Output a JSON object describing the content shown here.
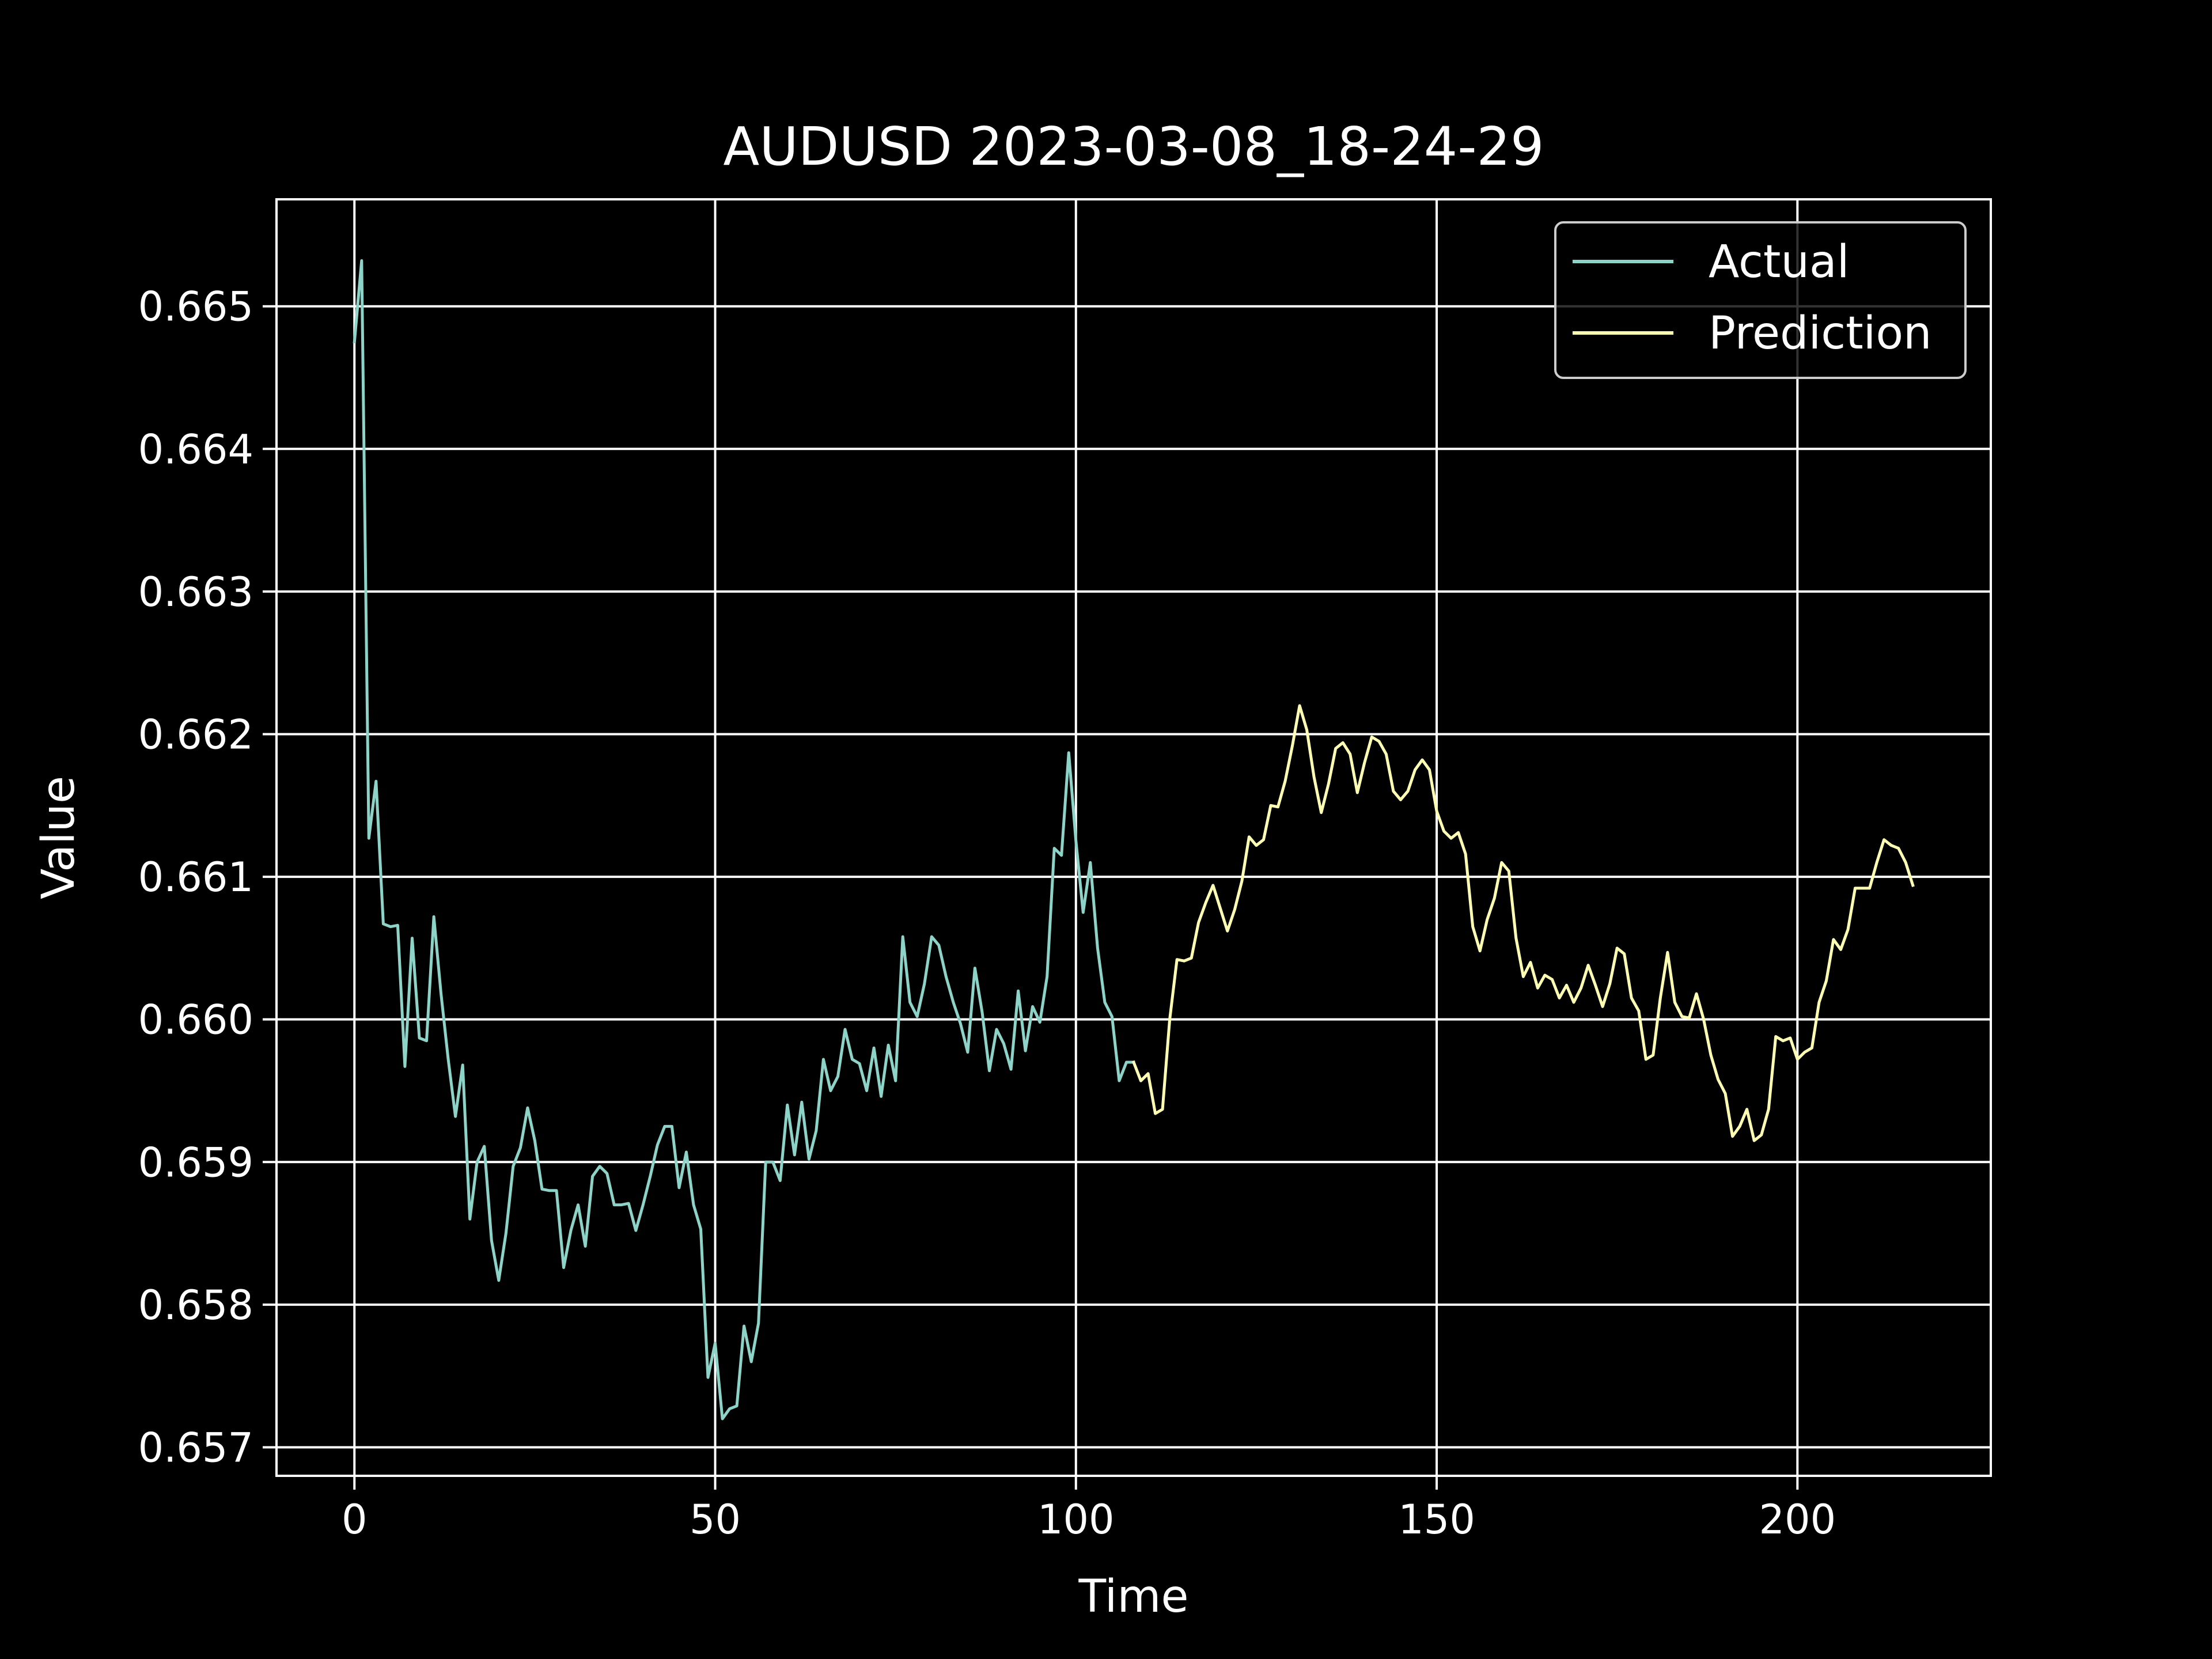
{
  "chart_data": {
    "type": "line",
    "title": "AUDUSD 2023-03-08_18-24-29",
    "xlabel": "Time",
    "ylabel": "Value",
    "xlim": [
      -10.8,
      226.8
    ],
    "ylim": [
      0.6568,
      0.66575
    ],
    "xticks": [
      0,
      50,
      100,
      150,
      200
    ],
    "xtick_labels": [
      "0",
      "50",
      "100",
      "150",
      "200"
    ],
    "yticks": [
      0.657,
      0.658,
      0.659,
      0.66,
      0.661,
      0.662,
      0.663,
      0.664,
      0.665
    ],
    "ytick_labels": [
      "0.657",
      "0.658",
      "0.659",
      "0.660",
      "0.661",
      "0.662",
      "0.663",
      "0.664",
      "0.665"
    ],
    "grid": true,
    "legend_position": "upper-right",
    "background": "#000000",
    "foreground": "#ffffff",
    "series": [
      {
        "name": "Actual",
        "color": "#8dd3c7",
        "x_start": 0,
        "values": [
          0.66475,
          0.66532,
          0.66127,
          0.66167,
          0.66067,
          0.66065,
          0.66066,
          0.65967,
          0.66057,
          0.65987,
          0.65985,
          0.66072,
          0.66018,
          0.65972,
          0.65932,
          0.65968,
          0.6586,
          0.659,
          0.65911,
          0.65845,
          0.65817,
          0.6585,
          0.65897,
          0.6591,
          0.65938,
          0.65915,
          0.65881,
          0.6588,
          0.6588,
          0.65826,
          0.65852,
          0.6587,
          0.65841,
          0.6589,
          0.65897,
          0.65892,
          0.6587,
          0.6587,
          0.65871,
          0.65852,
          0.6587,
          0.6589,
          0.65912,
          0.65925,
          0.65925,
          0.65882,
          0.65907,
          0.6587,
          0.65853,
          0.65749,
          0.65773,
          0.6572,
          0.65727,
          0.65729,
          0.65785,
          0.6576,
          0.65787,
          0.659,
          0.659,
          0.65887,
          0.6594,
          0.65905,
          0.65942,
          0.65902,
          0.65922,
          0.65972,
          0.6595,
          0.6596,
          0.65993,
          0.65972,
          0.65969,
          0.6595,
          0.6598,
          0.65946,
          0.65982,
          0.65957,
          0.66058,
          0.66012,
          0.66002,
          0.66025,
          0.66058,
          0.66052,
          0.6603,
          0.66012,
          0.65997,
          0.65977,
          0.66036,
          0.66005,
          0.65964,
          0.65993,
          0.65983,
          0.65965,
          0.6602,
          0.65978,
          0.66009,
          0.65998,
          0.6603,
          0.6612,
          0.66115,
          0.66187,
          0.66125,
          0.66075,
          0.6611,
          0.6605,
          0.66012,
          0.66002,
          0.65957,
          0.6597,
          0.6597
        ]
      },
      {
        "name": "Prediction",
        "color": "#ffffb3",
        "x_start": 108,
        "values": [
          0.6597,
          0.65957,
          0.65962,
          0.65934,
          0.65937,
          0.66,
          0.66042,
          0.66041,
          0.66043,
          0.66068,
          0.66082,
          0.66094,
          0.66078,
          0.66062,
          0.66077,
          0.66097,
          0.66128,
          0.66122,
          0.66126,
          0.6615,
          0.66149,
          0.66167,
          0.66192,
          0.6622,
          0.66203,
          0.6617,
          0.66145,
          0.66165,
          0.6619,
          0.66194,
          0.66186,
          0.66159,
          0.6618,
          0.66198,
          0.66195,
          0.66186,
          0.6616,
          0.66154,
          0.6616,
          0.66175,
          0.66182,
          0.66175,
          0.66146,
          0.66132,
          0.66127,
          0.66131,
          0.66116,
          0.66065,
          0.66048,
          0.6607,
          0.66085,
          0.6611,
          0.66104,
          0.66057,
          0.6603,
          0.6604,
          0.66022,
          0.66031,
          0.66028,
          0.66015,
          0.66024,
          0.66012,
          0.66022,
          0.66038,
          0.66024,
          0.66009,
          0.66025,
          0.6605,
          0.66046,
          0.66015,
          0.66006,
          0.65972,
          0.65975,
          0.66015,
          0.66047,
          0.66012,
          0.66002,
          0.66001,
          0.66018,
          0.66,
          0.65975,
          0.65958,
          0.65948,
          0.65918,
          0.65925,
          0.65937,
          0.65915,
          0.65919,
          0.65937,
          0.65988,
          0.65985,
          0.65987,
          0.65972,
          0.65977,
          0.6598,
          0.66012,
          0.66027,
          0.66056,
          0.66049,
          0.66063,
          0.66092,
          0.66092,
          0.66092,
          0.6611,
          0.66126,
          0.66122,
          0.6612,
          0.6611,
          0.66094
        ]
      }
    ]
  }
}
